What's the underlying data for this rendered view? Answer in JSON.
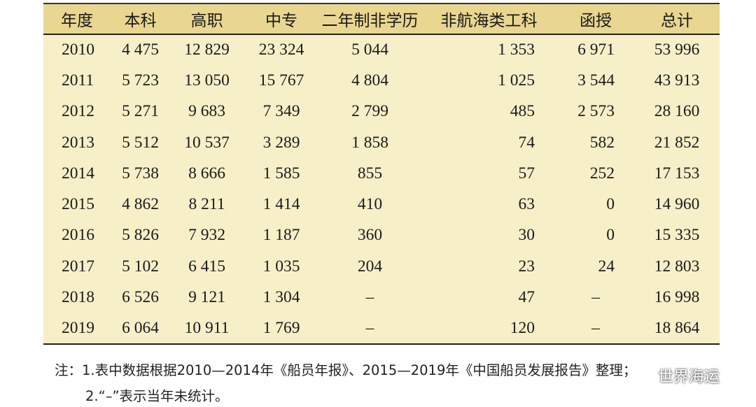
{
  "table": {
    "headers": [
      "年度",
      "本科",
      "高职",
      "中专",
      "二年制非学历",
      "非航海类工科",
      "函授",
      "总计"
    ],
    "rows": [
      [
        "2010",
        "4 475",
        "12 829",
        "23 324",
        "5 044",
        "1 353",
        "6 971",
        "53 996"
      ],
      [
        "2011",
        "5 723",
        "13 050",
        "15 767",
        "4 804",
        "1 025",
        "3 544",
        "43 913"
      ],
      [
        "2012",
        "5 271",
        "9 683",
        "7 349",
        "2 799",
        "485",
        "2 573",
        "28 160"
      ],
      [
        "2013",
        "5 512",
        "10 537",
        "3 289",
        "1 858",
        "74",
        "582",
        "21 852"
      ],
      [
        "2014",
        "5 738",
        "8 666",
        "1 585",
        "855",
        "57",
        "252",
        "17 153"
      ],
      [
        "2015",
        "4 862",
        "8 211",
        "1 414",
        "410",
        "63",
        "0",
        "14 960"
      ],
      [
        "2016",
        "5 826",
        "7 932",
        "1 187",
        "360",
        "30",
        "0",
        "15 335"
      ],
      [
        "2017",
        "5 102",
        "6 415",
        "1 035",
        "204",
        "23",
        "24",
        "12 803"
      ],
      [
        "2018",
        "6 526",
        "9 121",
        "1 304",
        "–",
        "47",
        "–",
        "16 998"
      ],
      [
        "2019",
        "6 064",
        "10 911",
        "1 769",
        "–",
        "120",
        "–",
        "18 864"
      ]
    ]
  },
  "notes": {
    "line1": "注：1.表中数据根据2010—2014年《船员年报》、2015—2019年《中国船员发展报告》整理；",
    "line2": "2.“–”表示当年未统计。"
  },
  "watermark": {
    "text": "世界海运",
    "icon": "wechat-icon"
  }
}
